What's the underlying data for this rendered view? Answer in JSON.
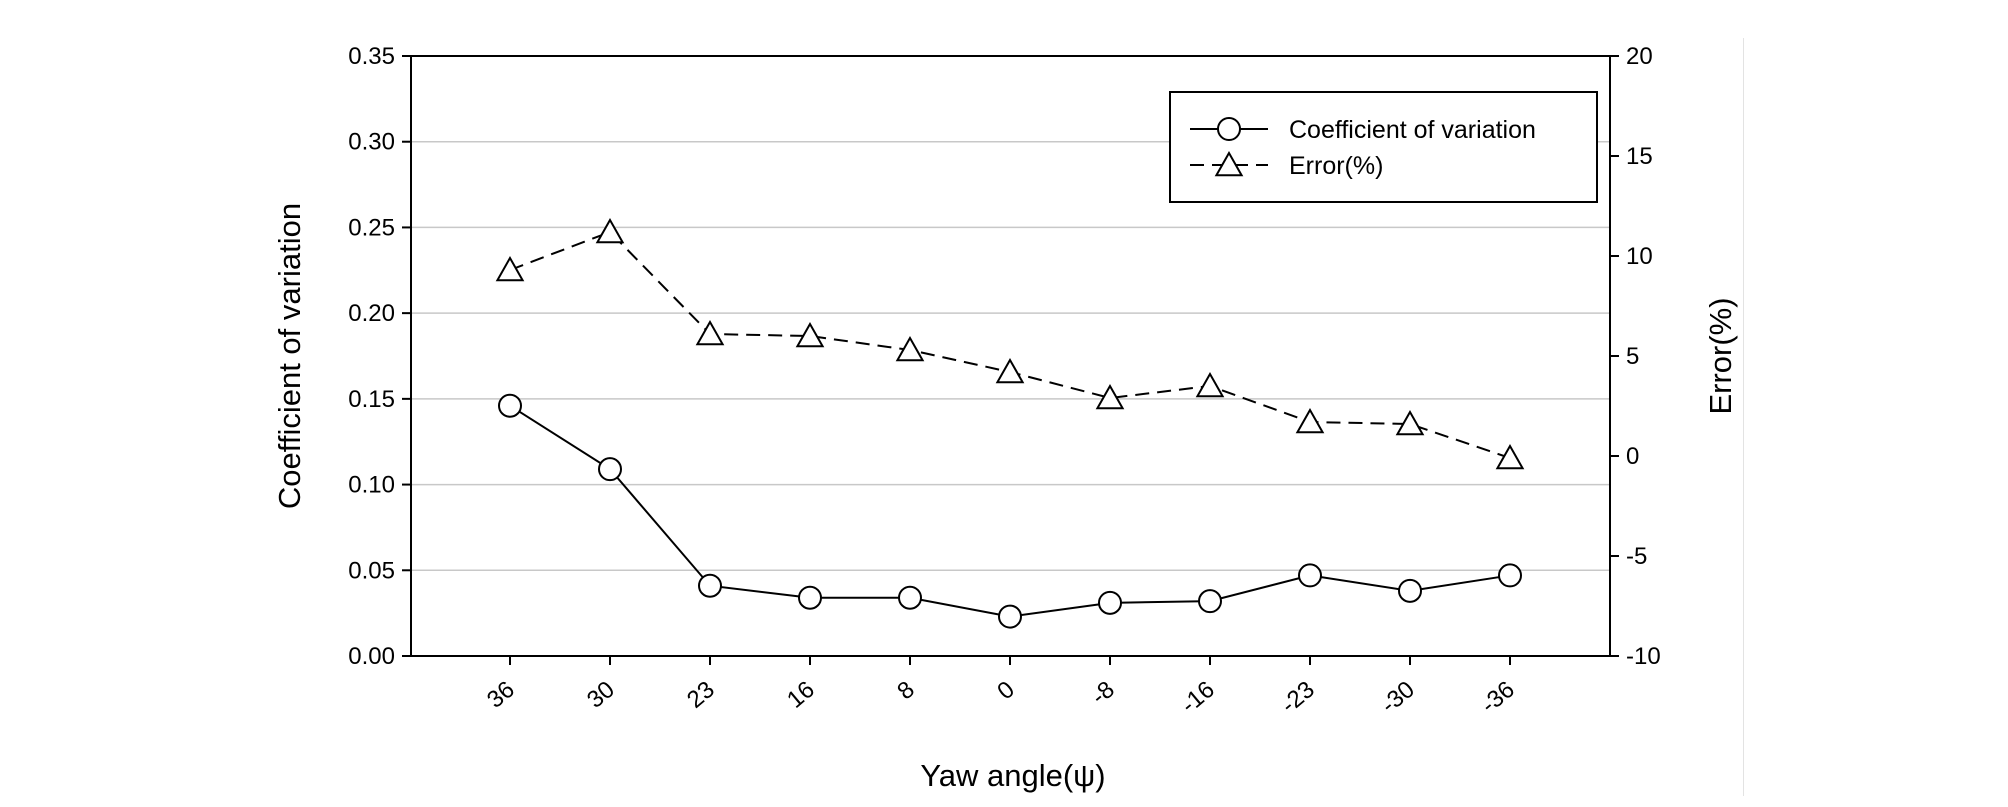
{
  "chart_data": {
    "type": "line",
    "title": "",
    "xlabel": "Yaw angle(ψ)",
    "ylabel": "Coefficient of variation",
    "y2label": "Error(%)",
    "categories": [
      "36",
      "30",
      "23",
      "16",
      "8",
      "0",
      "-8",
      "-16",
      "-23",
      "-30",
      "-36"
    ],
    "ylim": [
      0,
      0.35
    ],
    "yticks": [
      "0.00",
      "0.05",
      "0.10",
      "0.15",
      "0.20",
      "0.25",
      "0.30",
      "0.35"
    ],
    "y2lim": [
      -10,
      20
    ],
    "y2ticks": [
      "-10",
      "-5",
      "0",
      "5",
      "10",
      "15",
      "20"
    ],
    "grid": true,
    "legend_position": "top-right",
    "series": [
      {
        "name": "Coefficient of variation",
        "axis": "left",
        "marker": "circle",
        "line_style": "solid",
        "values": [
          0.146,
          0.109,
          0.041,
          0.034,
          0.034,
          0.023,
          0.031,
          0.032,
          0.047,
          0.038,
          0.047
        ]
      },
      {
        "name": "Error(%)",
        "axis": "right",
        "marker": "triangle",
        "line_style": "dashed",
        "values": [
          9.3,
          11.2,
          6.1,
          6.0,
          5.3,
          4.2,
          2.9,
          3.5,
          1.7,
          1.6,
          -0.1
        ]
      }
    ],
    "colors": {
      "line": "#000000",
      "grid": "#c8c8c8",
      "marker_fill": "#ffffff"
    }
  }
}
